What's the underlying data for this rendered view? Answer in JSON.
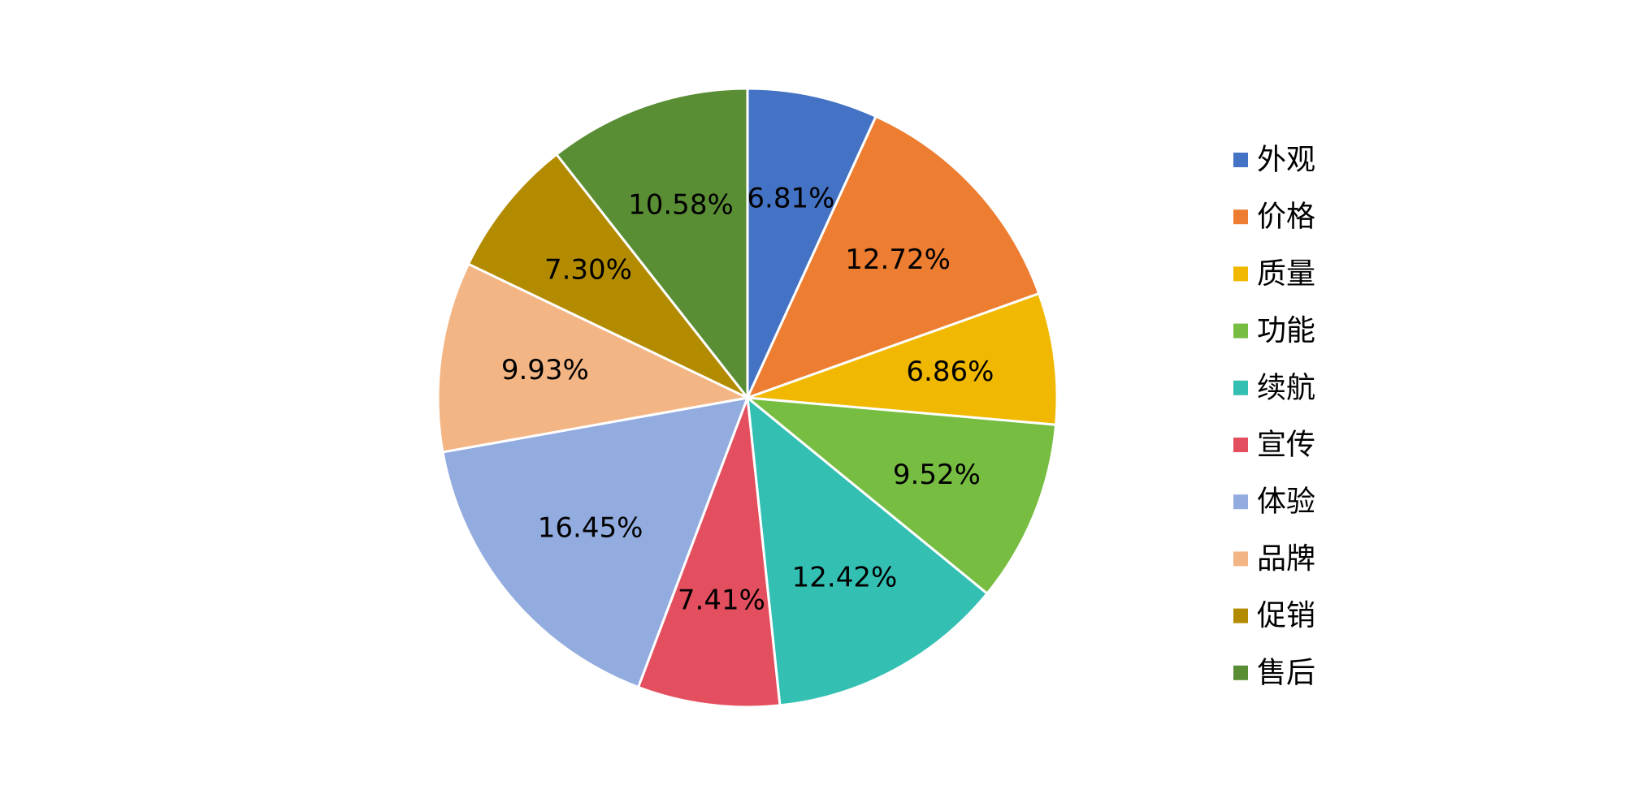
{
  "chart_data": {
    "type": "pie",
    "title": "",
    "legend_position": "right",
    "categories": [
      "外观",
      "价格",
      "质量",
      "功能",
      "续航",
      "宣传",
      "体验",
      "品牌",
      "促销",
      "售后"
    ],
    "values": [
      6.81,
      12.72,
      6.86,
      9.52,
      12.42,
      7.41,
      16.45,
      9.93,
      7.3,
      10.58
    ],
    "value_labels": [
      "6.81%",
      "12.72%",
      "6.86%",
      "9.52%",
      "12.42%",
      "7.41%",
      "16.45%",
      "9.93%",
      "7.30%",
      "10.58%"
    ],
    "colors": [
      "#4472C4",
      "#ED7D31",
      "#F0B800",
      "#77BD42",
      "#33C0B3",
      "#E34F5E",
      "#93ACE0",
      "#F3B584",
      "#B38B00",
      "#5A8E35"
    ],
    "unit": "%"
  }
}
